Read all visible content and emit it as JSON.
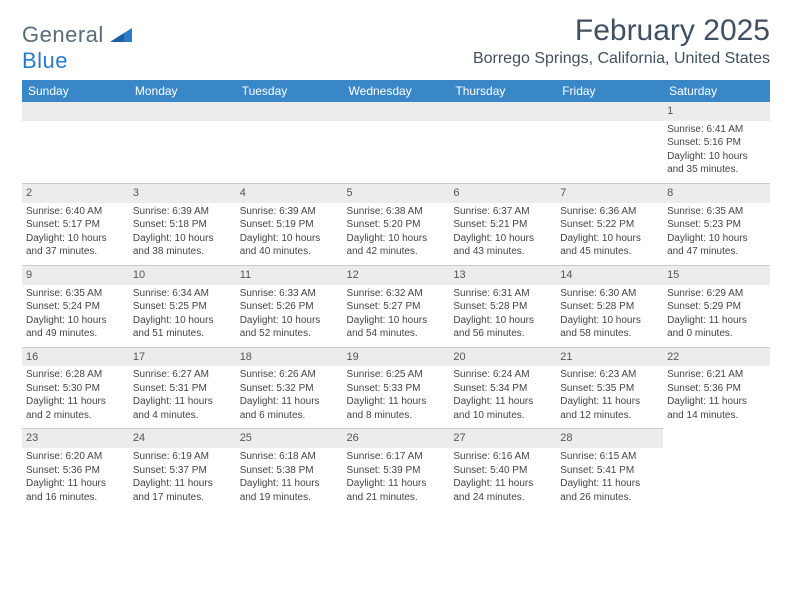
{
  "logo": {
    "text1": "General",
    "text2": "Blue"
  },
  "title": "February 2025",
  "location": "Borrego Springs, California, United States",
  "colors": {
    "header_bg": "#3a87c8",
    "header_text": "#ffffff",
    "daynum_bg": "#ececec",
    "border": "#c8cdd2",
    "text": "#444444",
    "title_text": "#405060"
  },
  "weekdays": [
    "Sunday",
    "Monday",
    "Tuesday",
    "Wednesday",
    "Thursday",
    "Friday",
    "Saturday"
  ],
  "weeks": [
    [
      null,
      null,
      null,
      null,
      null,
      null,
      {
        "d": "1",
        "sr": "6:41 AM",
        "ss": "5:16 PM",
        "dl": "10 hours and 35 minutes."
      }
    ],
    [
      {
        "d": "2",
        "sr": "6:40 AM",
        "ss": "5:17 PM",
        "dl": "10 hours and 37 minutes."
      },
      {
        "d": "3",
        "sr": "6:39 AM",
        "ss": "5:18 PM",
        "dl": "10 hours and 38 minutes."
      },
      {
        "d": "4",
        "sr": "6:39 AM",
        "ss": "5:19 PM",
        "dl": "10 hours and 40 minutes."
      },
      {
        "d": "5",
        "sr": "6:38 AM",
        "ss": "5:20 PM",
        "dl": "10 hours and 42 minutes."
      },
      {
        "d": "6",
        "sr": "6:37 AM",
        "ss": "5:21 PM",
        "dl": "10 hours and 43 minutes."
      },
      {
        "d": "7",
        "sr": "6:36 AM",
        "ss": "5:22 PM",
        "dl": "10 hours and 45 minutes."
      },
      {
        "d": "8",
        "sr": "6:35 AM",
        "ss": "5:23 PM",
        "dl": "10 hours and 47 minutes."
      }
    ],
    [
      {
        "d": "9",
        "sr": "6:35 AM",
        "ss": "5:24 PM",
        "dl": "10 hours and 49 minutes."
      },
      {
        "d": "10",
        "sr": "6:34 AM",
        "ss": "5:25 PM",
        "dl": "10 hours and 51 minutes."
      },
      {
        "d": "11",
        "sr": "6:33 AM",
        "ss": "5:26 PM",
        "dl": "10 hours and 52 minutes."
      },
      {
        "d": "12",
        "sr": "6:32 AM",
        "ss": "5:27 PM",
        "dl": "10 hours and 54 minutes."
      },
      {
        "d": "13",
        "sr": "6:31 AM",
        "ss": "5:28 PM",
        "dl": "10 hours and 56 minutes."
      },
      {
        "d": "14",
        "sr": "6:30 AM",
        "ss": "5:28 PM",
        "dl": "10 hours and 58 minutes."
      },
      {
        "d": "15",
        "sr": "6:29 AM",
        "ss": "5:29 PM",
        "dl": "11 hours and 0 minutes."
      }
    ],
    [
      {
        "d": "16",
        "sr": "6:28 AM",
        "ss": "5:30 PM",
        "dl": "11 hours and 2 minutes."
      },
      {
        "d": "17",
        "sr": "6:27 AM",
        "ss": "5:31 PM",
        "dl": "11 hours and 4 minutes."
      },
      {
        "d": "18",
        "sr": "6:26 AM",
        "ss": "5:32 PM",
        "dl": "11 hours and 6 minutes."
      },
      {
        "d": "19",
        "sr": "6:25 AM",
        "ss": "5:33 PM",
        "dl": "11 hours and 8 minutes."
      },
      {
        "d": "20",
        "sr": "6:24 AM",
        "ss": "5:34 PM",
        "dl": "11 hours and 10 minutes."
      },
      {
        "d": "21",
        "sr": "6:23 AM",
        "ss": "5:35 PM",
        "dl": "11 hours and 12 minutes."
      },
      {
        "d": "22",
        "sr": "6:21 AM",
        "ss": "5:36 PM",
        "dl": "11 hours and 14 minutes."
      }
    ],
    [
      {
        "d": "23",
        "sr": "6:20 AM",
        "ss": "5:36 PM",
        "dl": "11 hours and 16 minutes."
      },
      {
        "d": "24",
        "sr": "6:19 AM",
        "ss": "5:37 PM",
        "dl": "11 hours and 17 minutes."
      },
      {
        "d": "25",
        "sr": "6:18 AM",
        "ss": "5:38 PM",
        "dl": "11 hours and 19 minutes."
      },
      {
        "d": "26",
        "sr": "6:17 AM",
        "ss": "5:39 PM",
        "dl": "11 hours and 21 minutes."
      },
      {
        "d": "27",
        "sr": "6:16 AM",
        "ss": "5:40 PM",
        "dl": "11 hours and 24 minutes."
      },
      {
        "d": "28",
        "sr": "6:15 AM",
        "ss": "5:41 PM",
        "dl": "11 hours and 26 minutes."
      },
      null
    ]
  ]
}
